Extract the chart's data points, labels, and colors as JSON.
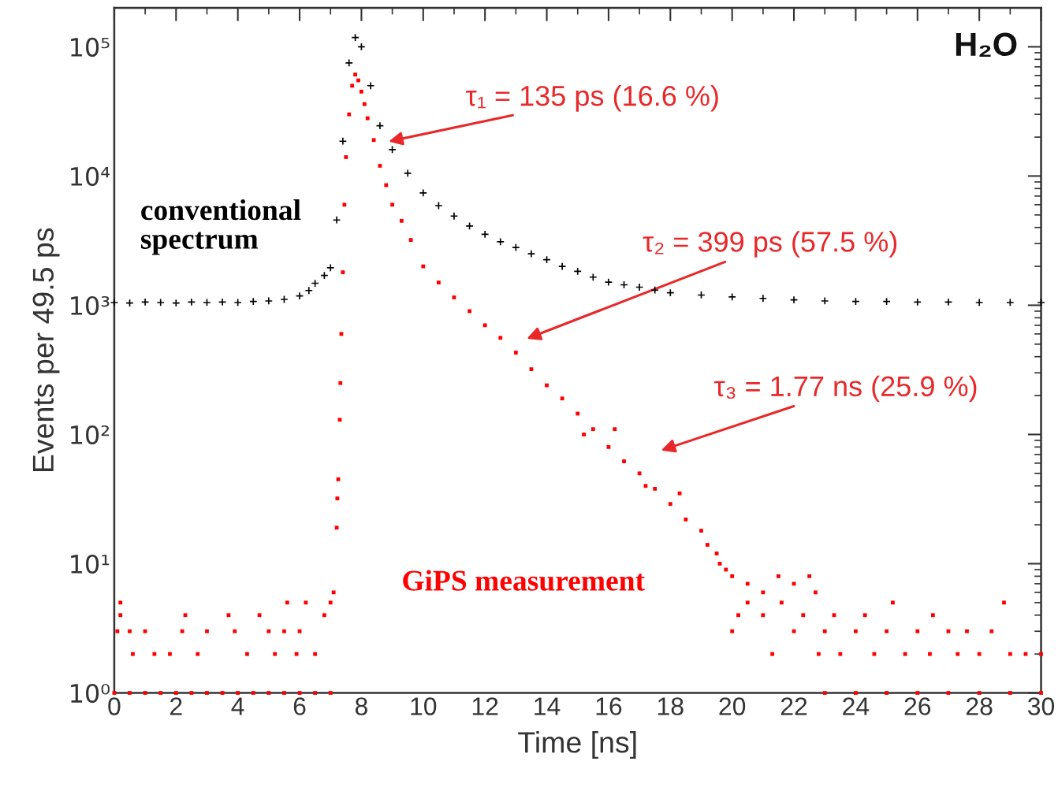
{
  "chart_data": {
    "type": "scatter",
    "xlabel": "Time [ns]",
    "ylabel": "Events per 49.5 ps",
    "log": "y",
    "xlim": [
      0,
      30
    ],
    "xticks": [
      0,
      2,
      4,
      6,
      8,
      10,
      12,
      14,
      16,
      18,
      20,
      22,
      24,
      26,
      28,
      30
    ],
    "ylim": [
      1,
      200000
    ],
    "yticks": [
      {
        "value": 1,
        "label": "10⁰"
      },
      {
        "value": 10,
        "label": "10¹"
      },
      {
        "value": 100,
        "label": "10²"
      },
      {
        "value": 1000,
        "label": "10³"
      },
      {
        "value": 10000,
        "label": "10⁴"
      },
      {
        "value": 100000,
        "label": "10⁵"
      }
    ],
    "grid": false,
    "series": [
      {
        "name": "conventional\nspectrum",
        "color": "#000000",
        "marker": "cross",
        "x": [
          0,
          0.5,
          1,
          1.5,
          2,
          2.5,
          3,
          3.5,
          4,
          4.5,
          5,
          5.5,
          6,
          6.3,
          6.5,
          6.8,
          7,
          7.2,
          7.4,
          7.6,
          7.8,
          8.0,
          8.3,
          8.6,
          9,
          9.5,
          10,
          10.5,
          11,
          11.5,
          12,
          12.5,
          13,
          13.5,
          14,
          14.5,
          15,
          15.5,
          16,
          16.5,
          17,
          17.5,
          18,
          19,
          20,
          21,
          22,
          23,
          24,
          25,
          26,
          27,
          28,
          29,
          30
        ],
        "values": [
          1050,
          1040,
          1060,
          1050,
          1040,
          1060,
          1050,
          1060,
          1050,
          1070,
          1080,
          1110,
          1180,
          1300,
          1480,
          1700,
          1950,
          4570,
          18600,
          75000,
          118000,
          100000,
          50000,
          24500,
          16000,
          10500,
          7400,
          5900,
          4900,
          4100,
          3540,
          3100,
          2800,
          2500,
          2250,
          2000,
          1830,
          1650,
          1510,
          1440,
          1380,
          1310,
          1250,
          1200,
          1160,
          1130,
          1100,
          1080,
          1070,
          1070,
          1060,
          1060,
          1050,
          1050,
          1050
        ]
      },
      {
        "name": "GiPS measurement",
        "color": "#ff0000",
        "marker": "square",
        "x": [
          0,
          0.5,
          1,
          1.5,
          2,
          2.5,
          3,
          3.5,
          4,
          4.5,
          5,
          5.5,
          6,
          6.5,
          7,
          0.2,
          0.2,
          0.1,
          0.5,
          1,
          0.6,
          1.3,
          1.8,
          2.2,
          2.3,
          2.7,
          3,
          3.7,
          3.9,
          4.3,
          4.7,
          5,
          5.2,
          5.5,
          5.6,
          5.9,
          6,
          6.2,
          6.5,
          6.8,
          7.0,
          7.1,
          7.2,
          7.22,
          7.25,
          7.3,
          7.32,
          7.35,
          7.4,
          7.45,
          7.5,
          7.6,
          7.7,
          7.8,
          7.9,
          8.0,
          8.1,
          8.2,
          8.4,
          8.6,
          8.8,
          9,
          9.3,
          9.6,
          10,
          10.5,
          11,
          11.5,
          12,
          12.5,
          13,
          13.5,
          14,
          14.5,
          15,
          15.2,
          15.5,
          16,
          16.2,
          16.5,
          17,
          17.2,
          17.5,
          18,
          18.3,
          18.5,
          19,
          19.2,
          19.5,
          19.6,
          19.8,
          20,
          20.5,
          21,
          21.5,
          22,
          22.5,
          22.7,
          20,
          20.5,
          20.2,
          21,
          21.3,
          21.6,
          22,
          22.3,
          22.8,
          23,
          23.3,
          23.5,
          24,
          24.3,
          24.6,
          25,
          25.2,
          25.6,
          26,
          26.4,
          26.5,
          27,
          27.3,
          27.6,
          28,
          28.4,
          28.8,
          29,
          29.5,
          30,
          23,
          24,
          25,
          26,
          27,
          28,
          29,
          30
        ],
        "values": [
          1,
          1,
          1,
          1,
          1,
          1,
          1,
          1,
          1,
          1,
          1,
          1,
          1,
          1,
          1,
          5,
          4,
          3,
          3,
          3,
          2,
          2,
          2,
          3,
          4,
          2,
          3,
          4,
          3,
          2,
          4,
          3,
          2,
          3,
          5,
          2,
          3,
          5,
          2,
          4,
          5,
          6,
          19,
          32,
          45,
          130,
          250,
          600,
          1800,
          6000,
          14000,
          30000,
          50000,
          61000,
          55000,
          45000,
          36000,
          28000,
          19000,
          12000,
          8500,
          6000,
          4500,
          3200,
          2000,
          1500,
          1150,
          900,
          700,
          560,
          430,
          320,
          240,
          190,
          145,
          100,
          110,
          80,
          110,
          62,
          50,
          40,
          38,
          29,
          35,
          22,
          18,
          14,
          12,
          10,
          9,
          8,
          7,
          6,
          8,
          7,
          8,
          6,
          3,
          5,
          4,
          4,
          2,
          5,
          3,
          4,
          2,
          3,
          4,
          2,
          3,
          4,
          2,
          3,
          5,
          2,
          3,
          2,
          4,
          3,
          2,
          3,
          2,
          3,
          5,
          2,
          2,
          2,
          1,
          1,
          1,
          1,
          1,
          1,
          1,
          1
        ]
      }
    ],
    "annotations": [
      "τ₁ = 135 ps (16.6 %)",
      "τ₂ = 399 ps (57.5 %)",
      "τ₃ = 1.77 ns (25.9 %)",
      "H₂O"
    ]
  }
}
